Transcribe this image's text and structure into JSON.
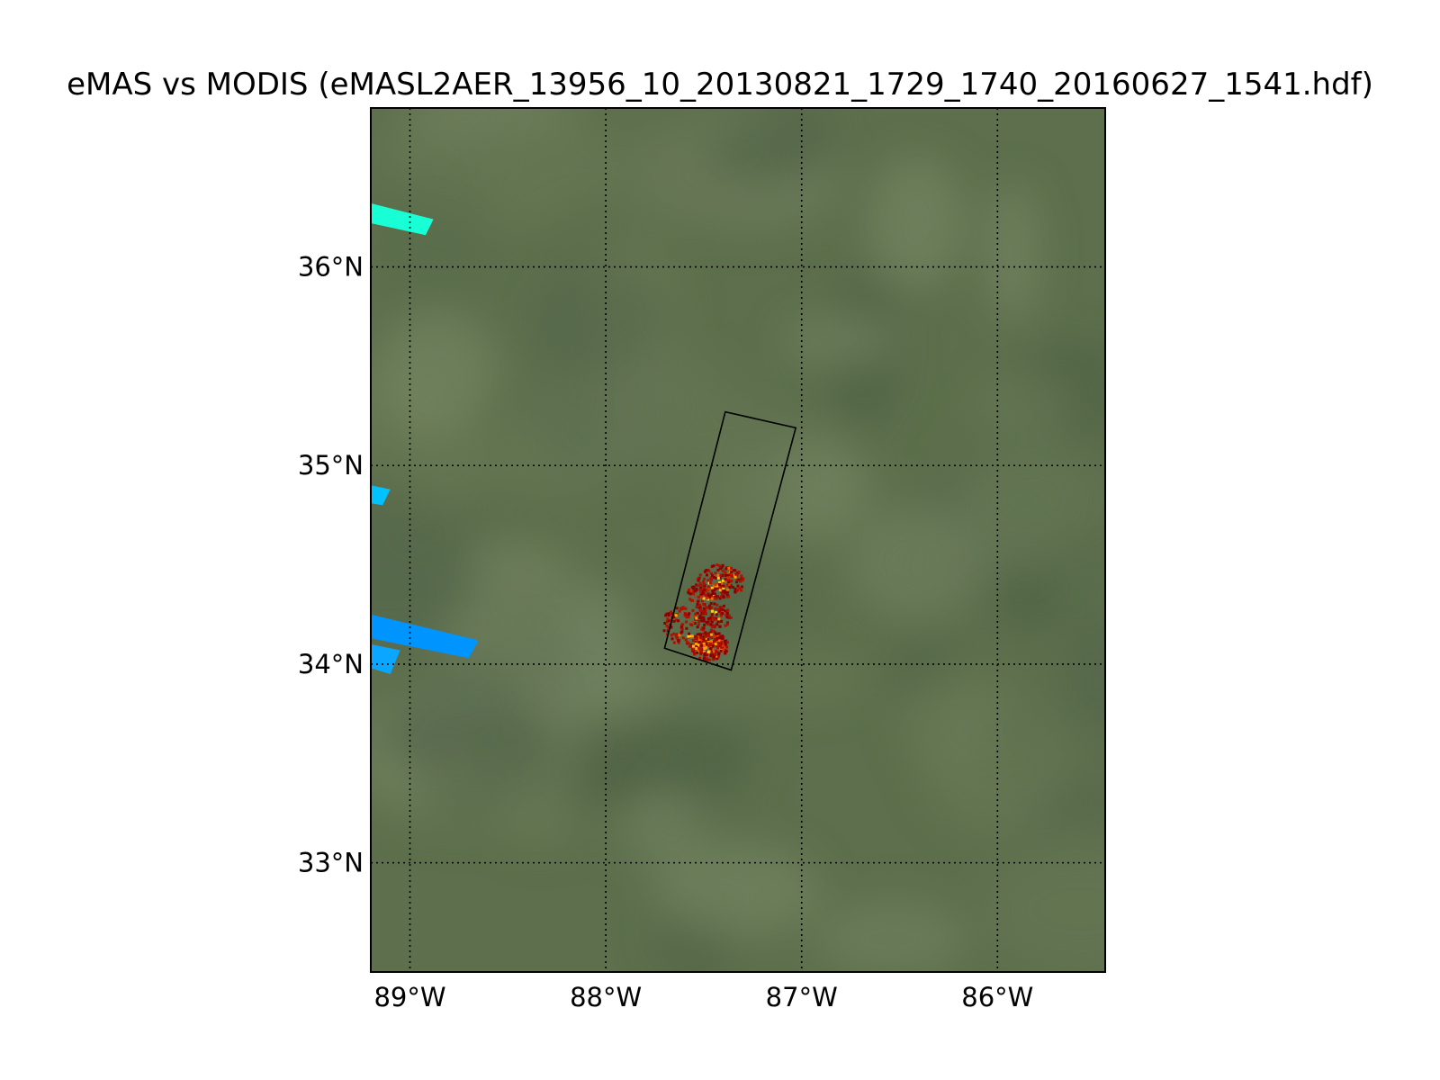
{
  "map": {
    "title": "eMAS vs MODIS (eMASL2AER_13956_10_20130821_1729_1740_20160627_1541.hdf)",
    "extent": {
      "lon_min": -89.2,
      "lon_max": -85.45,
      "lat_min": 32.45,
      "lat_max": 36.8
    },
    "meridians": [
      {
        "lon": -89,
        "label": "89°W"
      },
      {
        "lon": -88,
        "label": "88°W"
      },
      {
        "lon": -87,
        "label": "87°W"
      },
      {
        "lon": -86,
        "label": "86°W"
      }
    ],
    "parallels": [
      {
        "lat": 36,
        "label": "36°N"
      },
      {
        "lat": 35,
        "label": "35°N"
      },
      {
        "lat": 34,
        "label": "34°N"
      },
      {
        "lat": 33,
        "label": "33°N"
      }
    ],
    "grid": "dotted",
    "basemap_color": "#5d6f4c",
    "emas_footprint": [
      [
        -87.39,
        35.27
      ],
      [
        -87.03,
        35.19
      ],
      [
        -87.36,
        33.97
      ],
      [
        -87.7,
        34.08
      ]
    ],
    "modis_swaths": [
      {
        "color": "#19ffd5",
        "polygon": [
          [
            -89.2,
            36.32
          ],
          [
            -88.88,
            36.24
          ],
          [
            -88.92,
            36.16
          ],
          [
            -89.2,
            36.22
          ]
        ]
      },
      {
        "color": "#00c2ff",
        "polygon": [
          [
            -89.2,
            34.9
          ],
          [
            -89.1,
            34.88
          ],
          [
            -89.14,
            34.8
          ],
          [
            -89.2,
            34.81
          ]
        ]
      },
      {
        "color": "#0094ff",
        "polygon": [
          [
            -89.2,
            34.25
          ],
          [
            -88.65,
            34.12
          ],
          [
            -88.7,
            34.03
          ],
          [
            -89.2,
            34.13
          ]
        ]
      },
      {
        "color": "#0aa6ff",
        "polygon": [
          [
            -89.2,
            34.1
          ],
          [
            -89.05,
            34.07
          ],
          [
            -89.1,
            33.95
          ],
          [
            -89.2,
            33.98
          ]
        ]
      }
    ],
    "aerosol_colors": [
      "#8b0000",
      "#b01000",
      "#d63000",
      "#ff6a00",
      "#ffa500",
      "#ffd21e"
    ]
  }
}
